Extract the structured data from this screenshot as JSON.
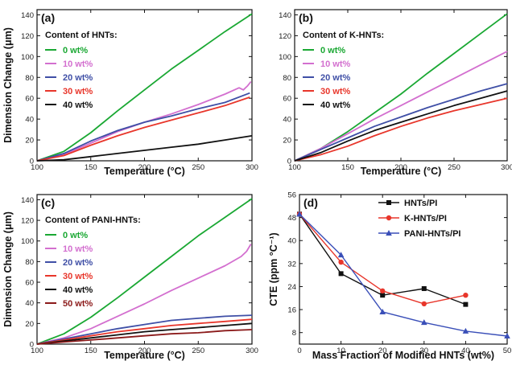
{
  "chart_data": [
    {
      "panel": "(a)",
      "type": "line",
      "xlabel": "Temperature (°C)",
      "ylabel": "Dimension Change (μm)",
      "xlim": [
        100,
        300
      ],
      "ylim": [
        0,
        145
      ],
      "xticks": [
        100,
        150,
        200,
        250,
        300
      ],
      "yticks": [
        0,
        20,
        40,
        60,
        80,
        100,
        120,
        140
      ],
      "legend_title": "Content of HNTs:",
      "legend_position": "top-left",
      "series": [
        {
          "name": "0 wt%",
          "color": "#1aa833",
          "x": [
            100,
            125,
            150,
            175,
            200,
            225,
            250,
            275,
            300
          ],
          "y": [
            0,
            9,
            27,
            48,
            68,
            88,
            106,
            124,
            141
          ]
        },
        {
          "name": "10 wt%",
          "color": "#d36fcf",
          "x": [
            100,
            125,
            150,
            175,
            200,
            225,
            250,
            275,
            288,
            292,
            296,
            299
          ],
          "y": [
            0,
            6,
            17,
            28,
            37,
            45,
            54,
            64,
            70,
            68,
            72,
            76
          ]
        },
        {
          "name": "20 wt%",
          "color": "#3f4fa6",
          "x": [
            100,
            125,
            150,
            175,
            200,
            225,
            250,
            275,
            298
          ],
          "y": [
            0,
            7,
            19,
            29,
            37,
            43,
            50,
            56,
            65
          ]
        },
        {
          "name": "30 wt%",
          "color": "#e8362b",
          "x": [
            100,
            125,
            150,
            175,
            200,
            225,
            250,
            275,
            298
          ],
          "y": [
            0,
            5,
            15,
            24,
            32,
            39,
            46,
            53,
            61
          ]
        },
        {
          "name": "40 wt%",
          "color": "#111111",
          "x": [
            100,
            125,
            150,
            175,
            200,
            225,
            250,
            275,
            300
          ],
          "y": [
            0,
            1,
            4,
            7,
            10,
            13,
            16,
            20,
            24
          ]
        }
      ]
    },
    {
      "panel": "(b)",
      "type": "line",
      "xlabel": "Temperature (°C)",
      "ylabel": "",
      "xlim": [
        100,
        300
      ],
      "ylim": [
        0,
        145
      ],
      "xticks": [
        100,
        150,
        200,
        250,
        300
      ],
      "yticks": [
        0,
        20,
        40,
        60,
        80,
        100,
        120,
        140
      ],
      "legend_title": "Content of K-HNTs:",
      "legend_position": "top-left",
      "series": [
        {
          "name": "0 wt%",
          "color": "#1aa833",
          "x": [
            100,
            125,
            150,
            175,
            200,
            225,
            250,
            275,
            300
          ],
          "y": [
            0,
            12,
            28,
            46,
            64,
            84,
            103,
            122,
            141
          ]
        },
        {
          "name": "10 wt%",
          "color": "#d36fcf",
          "x": [
            100,
            125,
            150,
            175,
            200,
            225,
            250,
            275,
            300
          ],
          "y": [
            0,
            12,
            26,
            40,
            53,
            66,
            79,
            92,
            105
          ]
        },
        {
          "name": "20 wt%",
          "color": "#3f4fa6",
          "x": [
            100,
            125,
            150,
            175,
            200,
            225,
            250,
            275,
            300
          ],
          "y": [
            0,
            11,
            22,
            33,
            42,
            51,
            59,
            67,
            74
          ]
        },
        {
          "name": "30 wt%",
          "color": "#e8362b",
          "x": [
            100,
            125,
            150,
            175,
            200,
            225,
            250,
            275,
            300
          ],
          "y": [
            0,
            6,
            14,
            24,
            33,
            41,
            48,
            54,
            60
          ]
        },
        {
          "name": "40 wt%",
          "color": "#111111",
          "x": [
            100,
            125,
            150,
            175,
            200,
            225,
            250,
            275,
            300
          ],
          "y": [
            0,
            8,
            19,
            29,
            37,
            45,
            53,
            60,
            67
          ]
        }
      ]
    },
    {
      "panel": "(c)",
      "type": "line",
      "xlabel": "Temperature (°C)",
      "ylabel": "Dimension Change (μm)",
      "xlim": [
        100,
        300
      ],
      "ylim": [
        0,
        145
      ],
      "xticks": [
        100,
        150,
        200,
        250,
        300
      ],
      "yticks": [
        0,
        20,
        40,
        60,
        80,
        100,
        120,
        140
      ],
      "legend_title": "Content of PANI-HNTs:",
      "legend_position": "top-left",
      "series": [
        {
          "name": "0 wt%",
          "color": "#1aa833",
          "x": [
            100,
            125,
            150,
            175,
            200,
            225,
            250,
            275,
            300
          ],
          "y": [
            0,
            10,
            26,
            45,
            65,
            85,
            105,
            123,
            141
          ]
        },
        {
          "name": "10 wt%",
          "color": "#d36fcf",
          "x": [
            100,
            125,
            150,
            175,
            200,
            225,
            250,
            275,
            290,
            295,
            299
          ],
          "y": [
            0,
            6,
            15,
            27,
            39,
            52,
            64,
            76,
            85,
            90,
            97
          ]
        },
        {
          "name": "20 wt%",
          "color": "#3f4fa6",
          "x": [
            100,
            125,
            150,
            175,
            200,
            225,
            250,
            275,
            300
          ],
          "y": [
            0,
            5,
            10,
            15,
            19,
            23,
            25,
            27,
            28
          ]
        },
        {
          "name": "30 wt%",
          "color": "#e8362b",
          "x": [
            100,
            125,
            150,
            175,
            200,
            225,
            250,
            275,
            300
          ],
          "y": [
            0,
            4,
            8,
            12,
            15,
            18,
            20,
            22,
            24
          ]
        },
        {
          "name": "40 wt%",
          "color": "#111111",
          "x": [
            100,
            125,
            150,
            175,
            200,
            225,
            250,
            275,
            300
          ],
          "y": [
            0,
            3,
            6,
            9,
            12,
            14,
            16,
            18,
            20
          ]
        },
        {
          "name": "50 wt%",
          "color": "#8b1a1a",
          "x": [
            100,
            125,
            150,
            175,
            200,
            225,
            250,
            275,
            300
          ],
          "y": [
            0,
            2,
            4,
            6,
            8,
            10,
            11,
            13,
            14
          ]
        }
      ]
    },
    {
      "panel": "(d)",
      "type": "line",
      "markers": true,
      "xlabel": "Mass Fraction of Modified HNTs (wt%)",
      "ylabel": "CTE (ppm °C⁻¹)",
      "xlim": [
        0,
        50
      ],
      "ylim": [
        4,
        56
      ],
      "xticks": [
        0,
        10,
        20,
        30,
        40,
        50
      ],
      "yticks": [
        8,
        16,
        24,
        32,
        40,
        48,
        56
      ],
      "legend_position": "top-right",
      "series": [
        {
          "name": "HNTs/PI",
          "color": "#111111",
          "marker": "square",
          "x": [
            0,
            10,
            20,
            30,
            40
          ],
          "y": [
            49.2,
            28.5,
            21.0,
            23.3,
            17.8
          ]
        },
        {
          "name": "K-HNTs/PI",
          "color": "#e8362b",
          "marker": "circle",
          "x": [
            0,
            10,
            20,
            30,
            40
          ],
          "y": [
            49.2,
            32.5,
            22.5,
            18.0,
            21.0
          ]
        },
        {
          "name": "PANI-HNTs/PI",
          "color": "#3a4fb8",
          "marker": "triangle",
          "x": [
            0,
            10,
            20,
            30,
            40,
            50
          ],
          "y": [
            49.2,
            35.0,
            15.2,
            11.5,
            8.5,
            6.8
          ]
        }
      ]
    }
  ]
}
